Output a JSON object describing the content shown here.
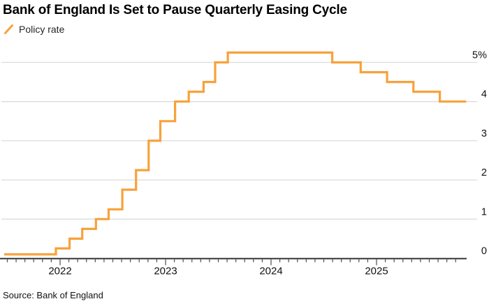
{
  "header": {
    "title": "Bank of England Is Set to Pause Quarterly Easing Cycle"
  },
  "legend": {
    "label": "Policy rate"
  },
  "footer": {
    "source": "Source: Bank of England"
  },
  "colors": {
    "line": "#F7A23B",
    "grid": "#DCDCDC",
    "axis": "#4D4D4D",
    "label": "#111111",
    "background": "#FFFFFF"
  },
  "chart_data": {
    "type": "line",
    "style": "step-after",
    "title": "Bank of England Is Set to Pause Quarterly Easing Cycle",
    "series_name": "Policy rate",
    "unit": "%",
    "legend_position": "top-left",
    "grid": "horizontal",
    "xlim": [
      2021.47,
      2025.85
    ],
    "ylim": [
      0,
      5.6
    ],
    "steps": [
      {
        "date": "2021-06",
        "t": 2021.47,
        "rate": 0.1
      },
      {
        "date": "2021-12-16",
        "t": 2021.96,
        "rate": 0.25
      },
      {
        "date": "2022-02-03",
        "t": 2022.09,
        "rate": 0.5
      },
      {
        "date": "2022-03-17",
        "t": 2022.21,
        "rate": 0.75
      },
      {
        "date": "2022-05-05",
        "t": 2022.34,
        "rate": 1.0
      },
      {
        "date": "2022-06-16",
        "t": 2022.46,
        "rate": 1.25
      },
      {
        "date": "2022-08-04",
        "t": 2022.59,
        "rate": 1.75
      },
      {
        "date": "2022-09-22",
        "t": 2022.72,
        "rate": 2.25
      },
      {
        "date": "2022-11-03",
        "t": 2022.84,
        "rate": 3.0
      },
      {
        "date": "2022-12-15",
        "t": 2022.95,
        "rate": 3.5
      },
      {
        "date": "2023-02-02",
        "t": 2023.09,
        "rate": 4.0
      },
      {
        "date": "2023-03-23",
        "t": 2023.22,
        "rate": 4.25
      },
      {
        "date": "2023-05-11",
        "t": 2023.36,
        "rate": 4.5
      },
      {
        "date": "2023-06-22",
        "t": 2023.47,
        "rate": 5.0
      },
      {
        "date": "2023-08-03",
        "t": 2023.59,
        "rate": 5.25
      },
      {
        "date": "2024-08-01",
        "t": 2024.58,
        "rate": 5.0
      },
      {
        "date": "2024-11-07",
        "t": 2024.85,
        "rate": 4.75
      },
      {
        "date": "2025-02-06",
        "t": 2025.1,
        "rate": 4.5
      },
      {
        "date": "2025-05-08",
        "t": 2025.35,
        "rate": 4.25
      },
      {
        "date": "2025-08-07",
        "t": 2025.6,
        "rate": 4.0
      }
    ],
    "end_t": 2025.85,
    "y_ticks": [
      {
        "value": 0,
        "label": "0"
      },
      {
        "value": 1,
        "label": "1"
      },
      {
        "value": 2,
        "label": "2"
      },
      {
        "value": 3,
        "label": "3"
      },
      {
        "value": 4,
        "label": "4"
      },
      {
        "value": 5,
        "label": "5%"
      }
    ],
    "x_ticks_years": [
      {
        "t": 2022,
        "label": "2022"
      },
      {
        "t": 2023,
        "label": "2023"
      },
      {
        "t": 2024,
        "label": "2024"
      },
      {
        "t": 2025,
        "label": "2025"
      }
    ],
    "minor_tick_start": 2021.5,
    "minor_tick_end": 2025.76,
    "minor_tick_interval_months": 1
  }
}
